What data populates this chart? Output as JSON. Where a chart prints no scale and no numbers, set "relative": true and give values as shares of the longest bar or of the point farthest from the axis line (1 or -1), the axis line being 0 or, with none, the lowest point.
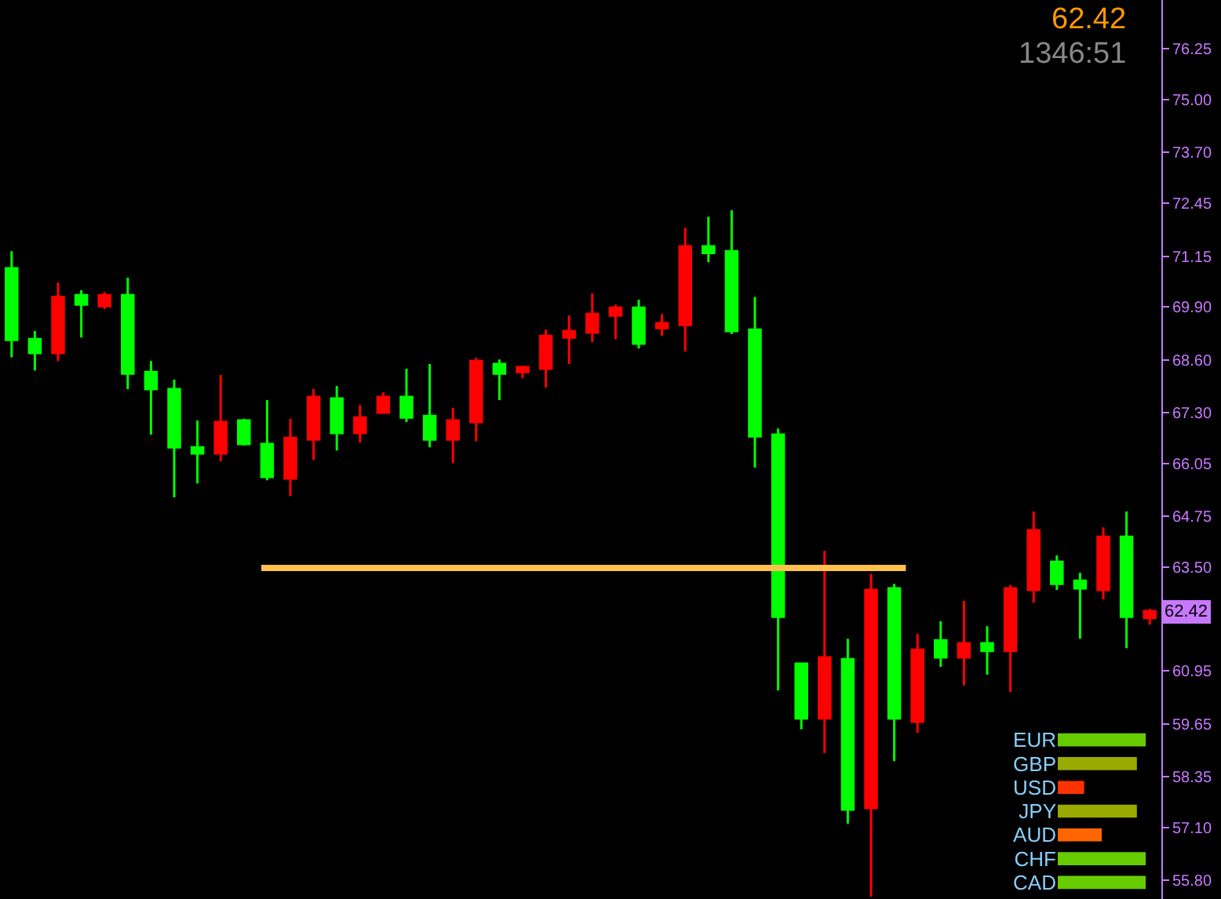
{
  "chart_data": [
    {
      "type": "candlestick",
      "categories": [
        null,
        null,
        null,
        null,
        null,
        null,
        null,
        null,
        null,
        null,
        null,
        null,
        null,
        null,
        null,
        null,
        null,
        null,
        null,
        null,
        null,
        null,
        null,
        null,
        null,
        null,
        null,
        null,
        null,
        null,
        null,
        null,
        null,
        null,
        null,
        null,
        null,
        null,
        null,
        null,
        null,
        null,
        null,
        null,
        null,
        null,
        null,
        null,
        null,
        null
      ],
      "ohlc": [
        [
          70.85,
          71.27,
          68.66,
          69.09
        ],
        [
          69.11,
          69.31,
          68.34,
          68.77
        ],
        [
          68.77,
          70.5,
          68.57,
          70.15
        ],
        [
          70.19,
          70.31,
          69.15,
          69.96
        ],
        [
          69.92,
          70.27,
          69.85,
          70.19
        ],
        [
          70.19,
          70.62,
          67.88,
          68.26
        ],
        [
          68.3,
          68.57,
          66.76,
          67.88
        ],
        [
          67.88,
          68.11,
          65.22,
          66.45
        ],
        [
          66.45,
          67.11,
          65.56,
          66.3
        ],
        [
          66.3,
          68.23,
          66.1,
          67.07
        ],
        [
          67.11,
          67.15,
          66.49,
          66.53
        ],
        [
          66.53,
          67.61,
          65.64,
          65.72
        ],
        [
          65.68,
          67.15,
          65.25,
          66.68
        ],
        [
          66.64,
          67.88,
          66.14,
          67.69
        ],
        [
          67.65,
          67.96,
          66.37,
          66.8
        ],
        [
          66.8,
          67.49,
          66.57,
          67.18
        ],
        [
          67.3,
          67.8,
          67.3,
          67.69
        ],
        [
          67.69,
          68.38,
          67.07,
          67.18
        ],
        [
          67.22,
          68.5,
          66.45,
          66.64
        ],
        [
          66.64,
          67.42,
          66.06,
          67.11
        ],
        [
          67.07,
          68.65,
          66.6,
          68.57
        ],
        [
          68.5,
          68.61,
          67.61,
          68.26
        ],
        [
          68.3,
          68.46,
          68.15,
          68.42
        ],
        [
          68.38,
          69.34,
          67.92,
          69.19
        ],
        [
          69.15,
          69.69,
          68.5,
          69.31
        ],
        [
          69.27,
          70.23,
          69.04,
          69.73
        ],
        [
          69.69,
          69.96,
          69.11,
          69.88
        ],
        [
          69.88,
          70.08,
          68.88,
          69.0
        ],
        [
          69.38,
          69.73,
          69.19,
          69.5
        ],
        [
          69.46,
          71.85,
          68.8,
          71.39
        ],
        [
          71.39,
          72.12,
          71.0,
          71.23
        ],
        [
          71.27,
          72.28,
          69.23,
          69.31
        ],
        [
          69.34,
          70.15,
          65.95,
          66.72
        ],
        [
          66.76,
          66.91,
          60.47,
          62.28
        ],
        [
          61.13,
          61.13,
          59.51,
          59.78
        ],
        [
          59.78,
          63.9,
          58.93,
          61.28
        ],
        [
          61.24,
          61.74,
          57.19,
          57.54
        ],
        [
          57.58,
          63.33,
          55.4,
          62.94
        ],
        [
          62.98,
          63.09,
          58.73,
          59.78
        ],
        [
          59.7,
          61.86,
          59.43,
          61.47
        ],
        [
          61.7,
          62.17,
          61.05,
          61.28
        ],
        [
          61.28,
          62.67,
          60.59,
          61.63
        ],
        [
          61.63,
          62.05,
          60.86,
          61.44
        ],
        [
          61.44,
          63.06,
          60.43,
          62.98
        ],
        [
          62.94,
          64.87,
          62.63,
          64.41
        ],
        [
          63.63,
          63.79,
          62.94,
          63.09
        ],
        [
          63.17,
          63.36,
          61.74,
          62.98
        ],
        [
          62.94,
          64.48,
          62.71,
          64.25
        ],
        [
          64.25,
          64.87,
          61.51,
          62.28
        ],
        [
          62.25,
          62.48,
          62.09,
          62.42
        ]
      ],
      "colors": [
        "#00ff00",
        "#00ff00",
        "#ff0000",
        "#00ff00",
        "#ff0000",
        "#00ff00",
        "#00ff00",
        "#00ff00",
        "#00ff00",
        "#ff0000",
        "#00ff00",
        "#00ff00",
        "#ff0000",
        "#ff0000",
        "#00ff00",
        "#ff0000",
        "#ff0000",
        "#00ff00",
        "#00ff00",
        "#ff0000",
        "#ff0000",
        "#00ff00",
        "#ff0000",
        "#ff0000",
        "#ff0000",
        "#ff0000",
        "#ff0000",
        "#00ff00",
        "#ff0000",
        "#ff0000",
        "#00ff00",
        "#00ff00",
        "#00ff00",
        "#00ff00",
        "#00ff00",
        "#ff0000",
        "#00ff00",
        "#ff0000",
        "#00ff00",
        "#ff0000",
        "#00ff00",
        "#ff0000",
        "#00ff00",
        "#ff0000",
        "#ff0000",
        "#00ff00",
        "#00ff00",
        "#ff0000",
        "#00ff00",
        "#ff0000"
      ],
      "ref_lines": [
        {
          "axis": "y",
          "value": 63.48,
          "color": "#ffc04d"
        }
      ],
      "ylim": [
        55.34,
        77.45
      ],
      "yticks": [
        {
          "value": 76.25,
          "label": "76.25"
        },
        {
          "value": 75.0,
          "label": "75.00"
        },
        {
          "value": 73.7,
          "label": "73.70"
        },
        {
          "value": 72.45,
          "label": "72.45"
        },
        {
          "value": 71.15,
          "label": "71.15"
        },
        {
          "value": 69.9,
          "label": "69.90"
        },
        {
          "value": 68.6,
          "label": "68.60"
        },
        {
          "value": 67.3,
          "label": "67.30"
        },
        {
          "value": 66.05,
          "label": "66.05"
        },
        {
          "value": 64.75,
          "label": "64.75"
        },
        {
          "value": 63.5,
          "label": "63.50"
        },
        {
          "value": 62.42,
          "label": "62.42"
        },
        {
          "value": 60.95,
          "label": "60.95"
        },
        {
          "value": 59.65,
          "label": "59.65"
        },
        {
          "value": 58.35,
          "label": "58.35"
        },
        {
          "value": 57.1,
          "label": "57.10"
        },
        {
          "value": 55.8,
          "label": "55.80"
        }
      ],
      "tick_labels": "y",
      "annotations": [
        "62.42",
        "1346:51"
      ]
    },
    {
      "type": "bar",
      "orientation": "horizontal",
      "relative": true,
      "categories": [
        "EUR",
        "GBP",
        "USD",
        "JPY",
        "AUD",
        "CHF",
        "CAD"
      ],
      "values": [
        1,
        0.9,
        0.3,
        0.9,
        0.5,
        1,
        1
      ],
      "colors": [
        "#66cc00",
        "#99aa00",
        "#ff3300",
        "#99aa00",
        "#ff6600",
        "#66cc00",
        "#66cc00"
      ],
      "tick_labels": "y"
    }
  ]
}
